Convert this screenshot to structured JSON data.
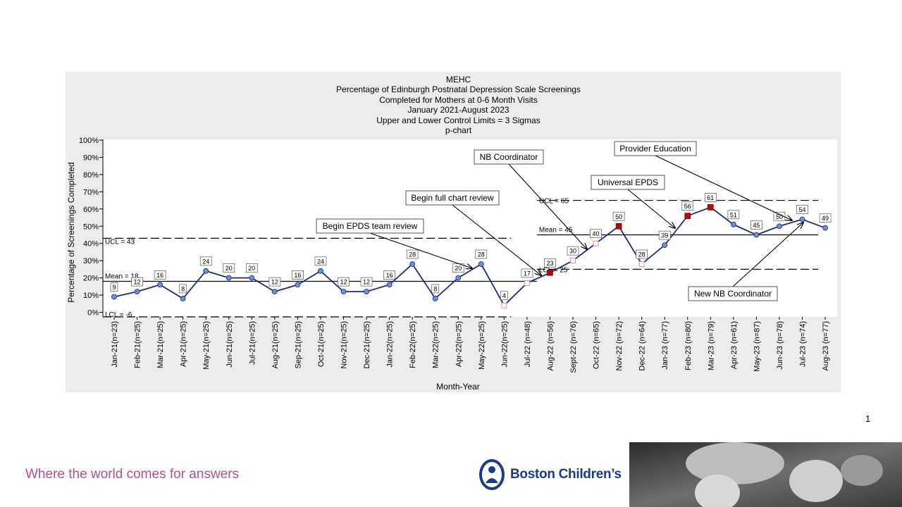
{
  "chart_data": {
    "type": "line",
    "title": "MEHC",
    "subtitle_lines": [
      "Percentage of Edinburgh Postnatal Depression Scale Screenings",
      "Completed for Mothers at 0-6 Month Visits",
      "January 2021-August 2023",
      "Upper and Lower Control Limits = 3 Sigmas",
      "p-chart"
    ],
    "xlabel": "Month-Year",
    "ylabel": "Percentage of Screenings Completed",
    "ylim": [
      0,
      100
    ],
    "yticks": [
      "0%",
      "10%",
      "20%",
      "30%",
      "40%",
      "50%",
      "60%",
      "70%",
      "80%",
      "90%",
      "100%"
    ],
    "categories": [
      "Jan-21(n=23)",
      "Feb-21(n=25)",
      "Mar-21(n=25)",
      "Apr-21(n=25)",
      "May-21(n=25)",
      "Jun-21(n=25)",
      "Jul-21(n=25)",
      "Aug-21(n=25)",
      "Sep-21(n=25)",
      "Oct-21(n=25)",
      "Nov-21(n=25)",
      "Dec-21(n=25)",
      "Jan-22(n=25)",
      "Feb-22(n=25)",
      "Mar-22(n=25)",
      "Apr-22(n=25)",
      "May-22(n=25)",
      "Jun-22(n=25)",
      "Jul-22 (n=48)",
      "Aug-22 (n=56)",
      "Sept-22 (n=76)",
      "Oct-22 (n=65)",
      "Nov-22 (n=72)",
      "Dec-22 (n=64)",
      "Jan-23 (n=77)",
      "Feb-23 (n=80)",
      "Mar-23 (n=79)",
      "Apr-23 (n=61)",
      "May-23 (n=87)",
      "Jun-23 (n=78)",
      "Jul-23 (n=74)",
      "Aug-23 (n=77)"
    ],
    "values": [
      9,
      12,
      16,
      8,
      24,
      20,
      20,
      12,
      16,
      24,
      12,
      12,
      16,
      28,
      8,
      20,
      28,
      4,
      17,
      23,
      30,
      40,
      50,
      28,
      39,
      56,
      61,
      51,
      45,
      50,
      54,
      49
    ],
    "value_labels": [
      "9",
      "12",
      "16",
      "8",
      "24",
      "20",
      "20",
      "12",
      "16",
      "24",
      "12",
      "12",
      "16",
      "28",
      "8",
      "20",
      "28",
      "4",
      "17",
      "23",
      "30",
      "40",
      "50",
      "28",
      "39",
      "56",
      "61",
      "51",
      "45",
      "50",
      "54",
      "49"
    ],
    "marker_style": [
      "circle",
      "circle",
      "circle",
      "circle",
      "circle",
      "circle",
      "circle",
      "circle",
      "circle",
      "circle",
      "circle",
      "circle",
      "circle",
      "circle",
      "circle",
      "circle",
      "circle",
      "open-square",
      "open-square",
      "red-square",
      "open-square",
      "open-square",
      "red-square",
      "open-square",
      "circle",
      "red-square",
      "red-square",
      "circle",
      "circle",
      "circle",
      "circle",
      "circle"
    ],
    "phase1": {
      "mean": 18,
      "ucl": 43,
      "lcl": -6,
      "mean_label": "Mean = 18",
      "ucl_label": "UCL = 43",
      "lcl_label": "LCL = -6"
    },
    "phase2": {
      "mean": 45,
      "ucl": 65,
      "lcl": 25,
      "mean_label": "Mean = 45",
      "ucl_label": "UCL = 65",
      "lcl_label": "LCL = 25"
    },
    "annotations": [
      {
        "text": "Begin EPDS team review",
        "target_index": 16
      },
      {
        "text": "Begin full chart review",
        "target_index": 19
      },
      {
        "text": "NB Coordinator",
        "target_index": 21
      },
      {
        "text": "Universal EPDS",
        "target_index": 24
      },
      {
        "text": "Provider Education",
        "target_index": 29
      },
      {
        "text": "New NB Coordinator",
        "target_index": 30
      }
    ],
    "colors": {
      "line": "#1f2a7a",
      "point": "#6b8fd8",
      "special": "#c00000",
      "panel": "#ececec"
    }
  },
  "footer": {
    "page_number": "1",
    "tagline": "Where the world comes for answers",
    "logo_text": "Boston Children’s"
  }
}
